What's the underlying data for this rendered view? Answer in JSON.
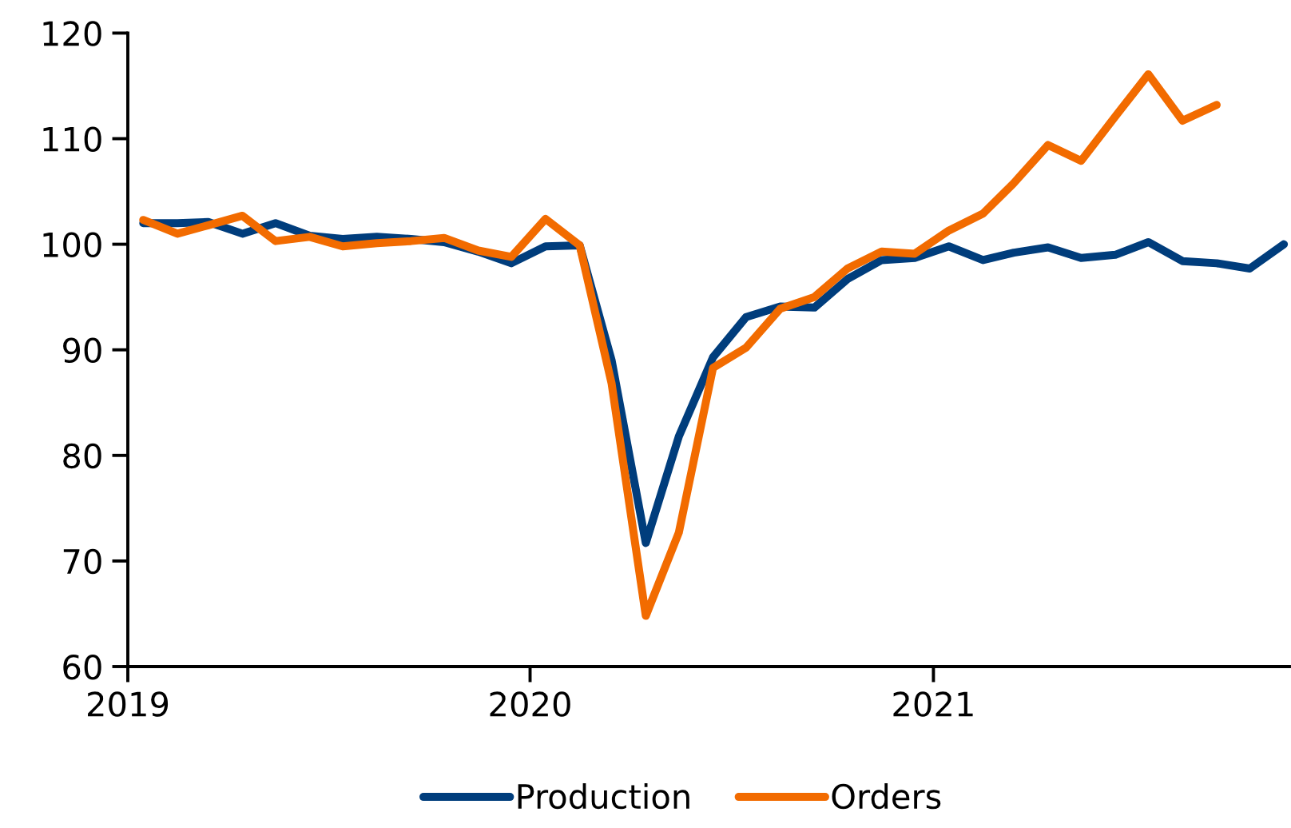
{
  "chart_data": {
    "type": "line",
    "x": [
      "2019-01-15",
      "2019-02-15",
      "2019-03-15",
      "2019-04-15",
      "2019-05-15",
      "2019-06-15",
      "2019-07-15",
      "2019-08-15",
      "2019-09-15",
      "2019-10-15",
      "2019-11-15",
      "2019-12-15",
      "2020-01-15",
      "2020-02-15",
      "2020-03-15",
      "2020-04-15",
      "2020-05-15",
      "2020-06-15",
      "2020-07-15",
      "2020-08-15",
      "2020-09-15",
      "2020-10-15",
      "2020-11-15",
      "2020-12-15",
      "2021-01-15",
      "2021-02-15",
      "2021-03-15",
      "2021-04-15",
      "2021-05-15",
      "2021-06-15",
      "2021-07-15",
      "2021-08-15",
      "2021-09-15",
      "2021-10-15",
      "2021-11-15"
    ],
    "series": [
      {
        "name": "Production",
        "color": "#003d7c",
        "values": [
          102.0,
          102.0,
          102.1,
          101.0,
          102.0,
          100.8,
          100.5,
          100.7,
          100.5,
          100.2,
          99.3,
          98.2,
          99.8,
          99.9,
          89.0,
          71.7,
          81.8,
          89.3,
          93.1,
          94.1,
          94.0,
          96.7,
          98.5,
          98.7,
          99.8,
          98.5,
          99.2,
          99.7,
          98.7,
          99.0,
          100.2,
          98.4,
          98.2,
          97.7,
          100.0
        ]
      },
      {
        "name": "Orders",
        "color": "#f26b00",
        "values": [
          102.3,
          101.0,
          101.8,
          102.7,
          100.3,
          100.7,
          99.8,
          100.1,
          100.3,
          100.6,
          99.4,
          98.8,
          102.4,
          99.9,
          86.8,
          64.8,
          72.7,
          88.3,
          90.2,
          93.9,
          95.0,
          97.7,
          99.3,
          99.1,
          101.3,
          102.9,
          105.8,
          109.4,
          107.9,
          112.1,
          116.1,
          111.7,
          113.2,
          null,
          null
        ]
      }
    ],
    "xlim": [
      "2019-01-01",
      "2021-11-20"
    ],
    "xticks": [
      "2019",
      "2020",
      "2021"
    ],
    "ylim": [
      60,
      120
    ],
    "yticks": [
      60,
      70,
      80,
      90,
      100,
      110,
      120
    ],
    "grid": false,
    "legend": "bottom",
    "marker": "none",
    "line_style": "solid"
  }
}
